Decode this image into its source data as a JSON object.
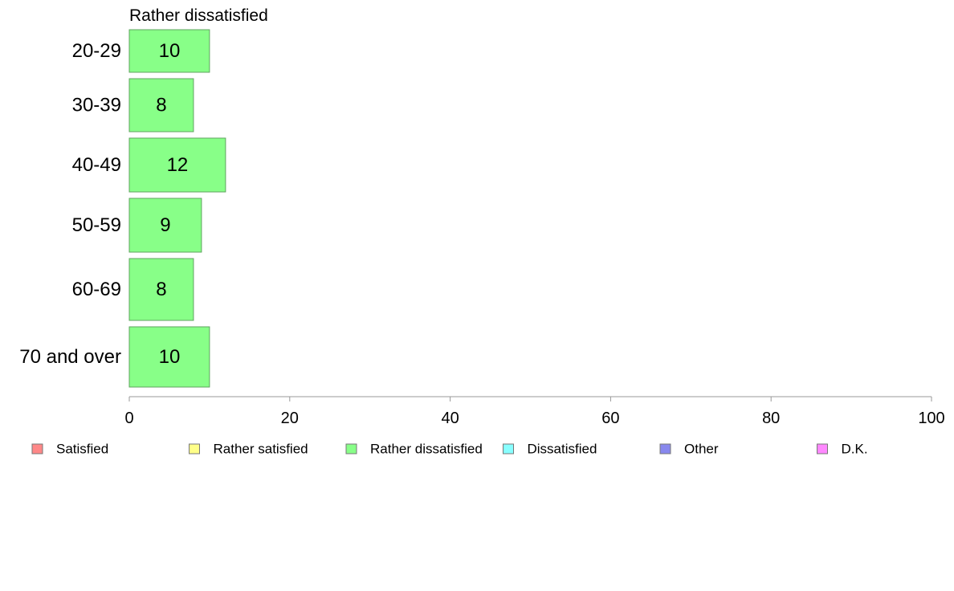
{
  "chart_data": {
    "type": "bar",
    "orientation": "horizontal",
    "title": "Rather dissatisfied",
    "categories": [
      "20-29",
      "30-39",
      "40-49",
      "50-59",
      "60-69",
      "70 and over"
    ],
    "values": [
      10,
      8,
      12,
      9,
      8,
      10
    ],
    "bar_value_labels": [
      "10",
      "8",
      "12",
      "9",
      "8",
      "10"
    ],
    "bar_color": "#88ff88",
    "bar_stroke": "#5fa35f",
    "xlim": [
      0,
      100
    ],
    "x_ticks": [
      0,
      20,
      40,
      60,
      80,
      100
    ],
    "grid": false,
    "legend_position": "bottom",
    "legend": [
      {
        "label": "Satisfied",
        "color": "#ff8888"
      },
      {
        "label": "Rather satisfied",
        "color": "#ffff88"
      },
      {
        "label": "Rather dissatisfied",
        "color": "#88ff88"
      },
      {
        "label": "Dissatisfied",
        "color": "#88ffff"
      },
      {
        "label": "Other",
        "color": "#8888ee"
      },
      {
        "label": "D.K.",
        "color": "#ff88ff"
      }
    ]
  }
}
